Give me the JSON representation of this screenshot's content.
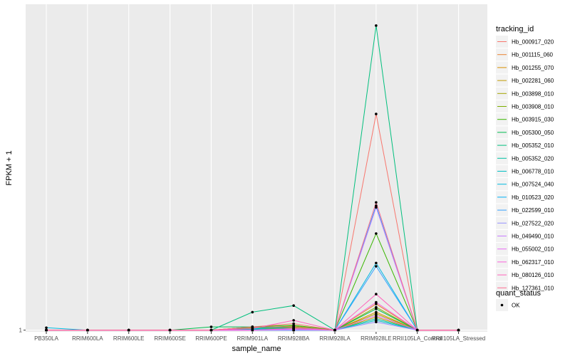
{
  "chart_data": {
    "type": "line",
    "xlabel": "sample_name",
    "ylabel": "FPKM + 1",
    "categories": [
      "PB350LA",
      "RRIM600LA",
      "RRIM600LE",
      "RRIM600SE",
      "RRIM600PE",
      "RRIM901LA",
      "RRIM928BA",
      "RRIM928LA",
      "RRIM928LE",
      "RRII105LA_Control",
      "RRII105LA_Stressed"
    ],
    "y_ticks": [
      {
        "value": 1,
        "label": "1"
      }
    ],
    "ylim": [
      0.9,
      20.9
    ],
    "grid": true,
    "legend_position": "right",
    "legend": {
      "title": "tracking_id",
      "quant_title": "quant_status",
      "quant_items": [
        "OK"
      ]
    },
    "series": [
      {
        "name": "Hb_000917_020",
        "color": "#F8766D",
        "values": [
          1,
          1,
          1,
          1,
          1,
          1.2,
          1.4,
          1,
          14.2,
          1,
          1
        ]
      },
      {
        "name": "Hb_001115_060",
        "color": "#EA8331",
        "values": [
          1,
          1,
          1,
          1,
          1,
          1.1,
          1.2,
          1,
          2.6,
          1,
          1
        ]
      },
      {
        "name": "Hb_001255_070",
        "color": "#D89000",
        "values": [
          1,
          1,
          1,
          1,
          1,
          1.1,
          1.1,
          1,
          2.1,
          1,
          1
        ]
      },
      {
        "name": "Hb_002281_060",
        "color": "#C09B00",
        "values": [
          1,
          1,
          1,
          1,
          1,
          1.05,
          1.1,
          1,
          1.8,
          1,
          1
        ]
      },
      {
        "name": "Hb_003898_010",
        "color": "#A3A500",
        "values": [
          1,
          1,
          1,
          1,
          1,
          1.1,
          1.15,
          1,
          2.0,
          1,
          1
        ]
      },
      {
        "name": "Hb_003908_010",
        "color": "#7CAE00",
        "values": [
          1,
          1,
          1,
          1,
          1,
          1.15,
          1.25,
          1,
          2.4,
          1,
          1
        ]
      },
      {
        "name": "Hb_003915_030",
        "color": "#39B600",
        "values": [
          1,
          1,
          1,
          1,
          1,
          1.2,
          1.3,
          1,
          6.9,
          1,
          1
        ]
      },
      {
        "name": "Hb_005300_050",
        "color": "#00BB4E",
        "values": [
          1,
          1,
          1,
          1,
          1.2,
          1.2,
          1.1,
          1,
          2.3,
          1,
          1
        ]
      },
      {
        "name": "Hb_005352_010",
        "color": "#00BF7D",
        "values": [
          1,
          1,
          1,
          1,
          1,
          2.1,
          2.5,
          1,
          19.6,
          1,
          1
        ]
      },
      {
        "name": "Hb_005352_020",
        "color": "#00C1A3",
        "values": [
          1,
          1,
          1,
          1,
          1,
          1.1,
          1.2,
          1,
          1.7,
          1,
          1
        ]
      },
      {
        "name": "Hb_006778_010",
        "color": "#00BFC4",
        "values": [
          1,
          1,
          1,
          1,
          1,
          1.05,
          1.1,
          1,
          1.6,
          1,
          1
        ]
      },
      {
        "name": "Hb_007524_040",
        "color": "#00BAE0",
        "values": [
          1.15,
          1,
          1,
          1,
          1,
          1.1,
          1.0,
          1,
          5.1,
          1,
          1
        ]
      },
      {
        "name": "Hb_010523_020",
        "color": "#00B0F6",
        "values": [
          1,
          1,
          1,
          1,
          1,
          1,
          1.0,
          1,
          8.6,
          1,
          1
        ]
      },
      {
        "name": "Hb_022599_010",
        "color": "#35A2FF",
        "values": [
          1,
          1,
          1,
          1,
          1,
          1,
          1.0,
          1,
          4.9,
          1,
          1
        ]
      },
      {
        "name": "Hb_027522_020",
        "color": "#9590FF",
        "values": [
          1,
          1,
          1,
          1,
          1,
          1,
          1.0,
          1,
          1.5,
          1,
          1
        ]
      },
      {
        "name": "Hb_049490_010",
        "color": "#C77CFF",
        "values": [
          1,
          1,
          1,
          1,
          1,
          1,
          1.1,
          1,
          8.5,
          1,
          1
        ]
      },
      {
        "name": "Hb_055002_010",
        "color": "#E76BF3",
        "values": [
          1,
          1,
          1,
          1,
          1,
          1,
          1.05,
          1,
          1.9,
          1,
          1
        ]
      },
      {
        "name": "Hb_062317_010",
        "color": "#FA62DB",
        "values": [
          1,
          1,
          1,
          1,
          1,
          1,
          1.1,
          1,
          2.7,
          1,
          1
        ]
      },
      {
        "name": "Hb_080126_010",
        "color": "#FF62BC",
        "values": [
          1,
          1,
          1,
          1,
          1,
          1.1,
          1.6,
          1,
          3.2,
          1,
          1
        ]
      },
      {
        "name": "Hb_127361_010",
        "color": "#FF6C90",
        "values": [
          1,
          1,
          1,
          1,
          1,
          1.2,
          1.2,
          1,
          8.8,
          1,
          1
        ]
      }
    ]
  }
}
